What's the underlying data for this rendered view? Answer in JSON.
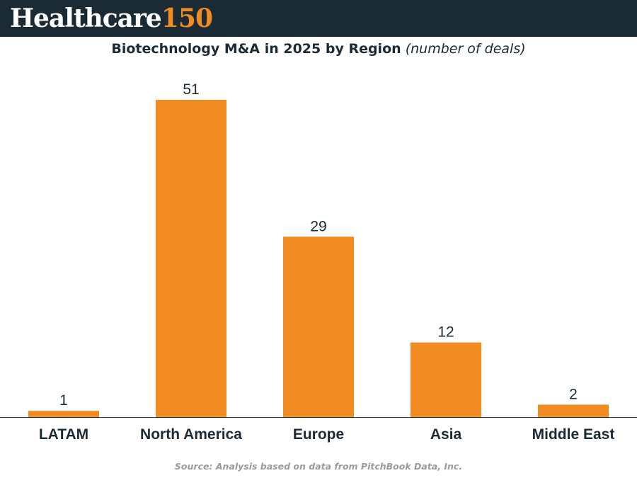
{
  "brand": {
    "name_word": "Healthcare",
    "name_number": "150",
    "colors": {
      "header_bg": "#1b2b35",
      "accent": "#f28b22",
      "text": "#1b2b35"
    }
  },
  "title": {
    "main": "Biotechnology M&A in 2025 by Region",
    "sub": "(number of deals)"
  },
  "source": "Source: Analysis based on data from PitchBook Data, Inc.",
  "chart_data": {
    "type": "bar",
    "categories": [
      "LATAM",
      "North America",
      "Europe",
      "Asia",
      "Middle East"
    ],
    "values": [
      1,
      51,
      29,
      12,
      2
    ],
    "data_labels": [
      "1",
      "51",
      "29",
      "12",
      "2"
    ],
    "ylim": [
      0,
      56
    ],
    "grid": false,
    "legend": "none",
    "bar_color": "#f28b22"
  }
}
